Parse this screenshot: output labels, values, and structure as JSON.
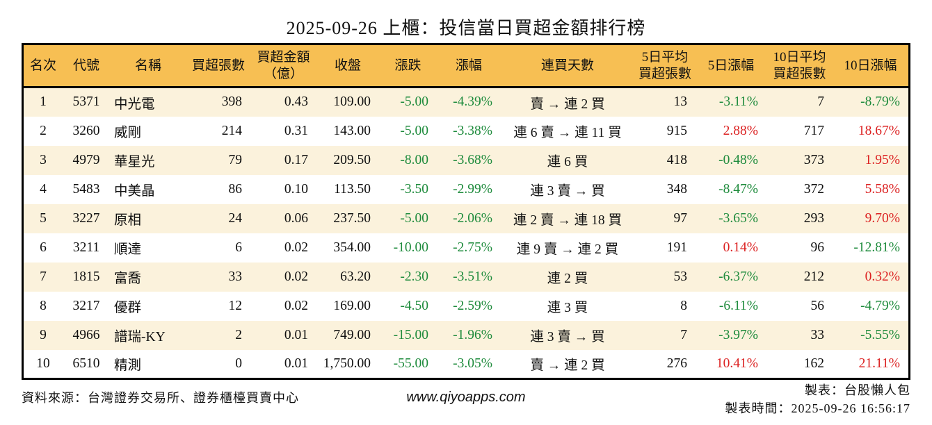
{
  "title": "2025-09-26 上櫃：投信當日買超金額排行榜",
  "colors": {
    "up": "#dc2222",
    "down": "#1e8b3c",
    "header_bg": "#f7bf53",
    "row_alt_bg": "#fbf2dc",
    "border": "#000000"
  },
  "chart_data": {
    "type": "table",
    "title": "2025-09-26 上櫃：投信當日買超金額排行榜",
    "columns": [
      "名次",
      "代號",
      "名稱",
      "買超張數",
      "買超金額\n（億）",
      "收盤",
      "漲跌",
      "漲幅",
      "連買天數",
      "5日平均\n買超張數",
      "5日漲幅",
      "10日平均\n買超張數",
      "10日漲幅"
    ],
    "rows": [
      [
        "1",
        "5371",
        "中光電",
        "398",
        "0.43",
        "109.00",
        "-5.00",
        "-4.39%",
        "賣 → 連 2 買",
        "13",
        "-3.11%",
        "7",
        "-8.79%"
      ],
      [
        "2",
        "3260",
        "威剛",
        "214",
        "0.31",
        "143.00",
        "-5.00",
        "-3.38%",
        "連 6 賣 → 連 11 買",
        "915",
        "2.88%",
        "717",
        "18.67%"
      ],
      [
        "3",
        "4979",
        "華星光",
        "79",
        "0.17",
        "209.50",
        "-8.00",
        "-3.68%",
        "連 6 買",
        "418",
        "-0.48%",
        "373",
        "1.95%"
      ],
      [
        "4",
        "5483",
        "中美晶",
        "86",
        "0.10",
        "113.50",
        "-3.50",
        "-2.99%",
        "連 3 賣 → 買",
        "348",
        "-8.47%",
        "372",
        "5.58%"
      ],
      [
        "5",
        "3227",
        "原相",
        "24",
        "0.06",
        "237.50",
        "-5.00",
        "-2.06%",
        "連 2 賣 → 連 18 買",
        "97",
        "-3.65%",
        "293",
        "9.70%"
      ],
      [
        "6",
        "3211",
        "順達",
        "6",
        "0.02",
        "354.00",
        "-10.00",
        "-2.75%",
        "連 9 賣 → 連 2 買",
        "191",
        "0.14%",
        "96",
        "-12.81%"
      ],
      [
        "7",
        "1815",
        "富喬",
        "33",
        "0.02",
        "63.20",
        "-2.30",
        "-3.51%",
        "連 2 買",
        "53",
        "-6.37%",
        "212",
        "0.32%"
      ],
      [
        "8",
        "3217",
        "優群",
        "12",
        "0.02",
        "169.00",
        "-4.50",
        "-2.59%",
        "連 3 買",
        "8",
        "-6.11%",
        "56",
        "-4.79%"
      ],
      [
        "9",
        "4966",
        "譜瑞-KY",
        "2",
        "0.01",
        "749.00",
        "-15.00",
        "-1.96%",
        "連 3 賣 → 買",
        "7",
        "-3.97%",
        "33",
        "-5.55%"
      ],
      [
        "10",
        "6510",
        "精測",
        "0",
        "0.01",
        "1,750.00",
        "-55.00",
        "-3.05%",
        "賣 → 連 2 買",
        "276",
        "10.41%",
        "162",
        "21.11%"
      ]
    ]
  },
  "footer": {
    "source": "資料來源：台灣證券交易所、證券櫃檯買賣中心",
    "website": "www.qiyoapps.com",
    "author": "製表：台股懶人包",
    "generated_at": "製表時間：2025-09-26 16:56:17"
  }
}
